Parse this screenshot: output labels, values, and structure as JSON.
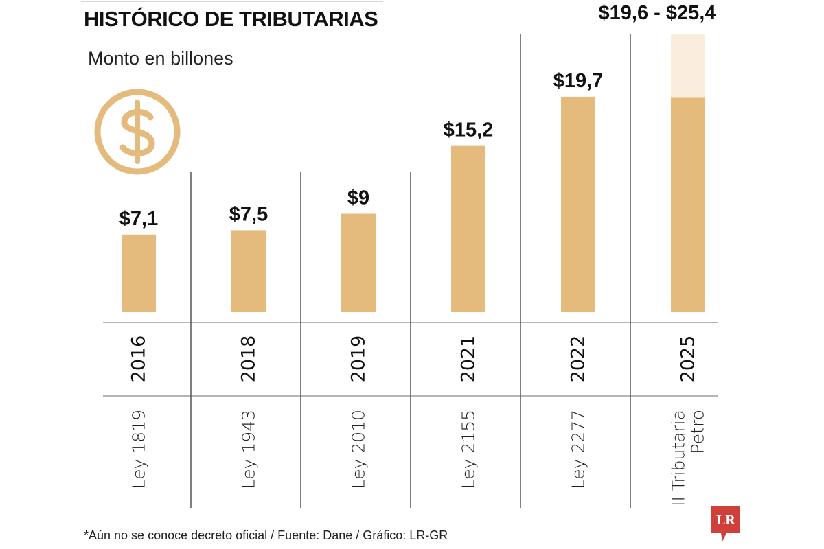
{
  "header": {
    "title": "HISTÓRICO DE TRIBUTARIAS",
    "subtitle": "Monto en billones"
  },
  "icons": {
    "main": "dollar-coin-icon",
    "brand": "lr-logo-icon"
  },
  "colors": {
    "bar": "#e4bb7c",
    "bar_range": "#fbeddd",
    "icon": "#e4bb7c",
    "logo": "#d0403a"
  },
  "chart_data": {
    "type": "bar",
    "title": "HISTÓRICO DE TRIBUTARIAS",
    "subtitle": "Monto en billones",
    "xlabel": "",
    "ylabel": "Monto en billones",
    "ylim": [
      0,
      28
    ],
    "grid": false,
    "legend": "none",
    "categories": [
      "2016",
      "2018",
      "2019",
      "2021",
      "2022",
      "2025"
    ],
    "laws": [
      "Ley 1819",
      "Ley 1943",
      "Ley 2010",
      "Ley 2155",
      "Ley 2277",
      "II Tributaria Petro"
    ],
    "values": [
      7.1,
      7.5,
      9,
      15.2,
      19.7,
      19.6
    ],
    "range_high": [
      null,
      null,
      null,
      null,
      null,
      25.4
    ],
    "labels": [
      "$7,1",
      "$7,5",
      "$9",
      "$15,2",
      "$19,7",
      "$19,6 - $25,4"
    ]
  },
  "logo_text": "LR",
  "footer": "*Aún no se conoce decreto oficial / Fuente: Dane / Gráfico: LR-GR"
}
